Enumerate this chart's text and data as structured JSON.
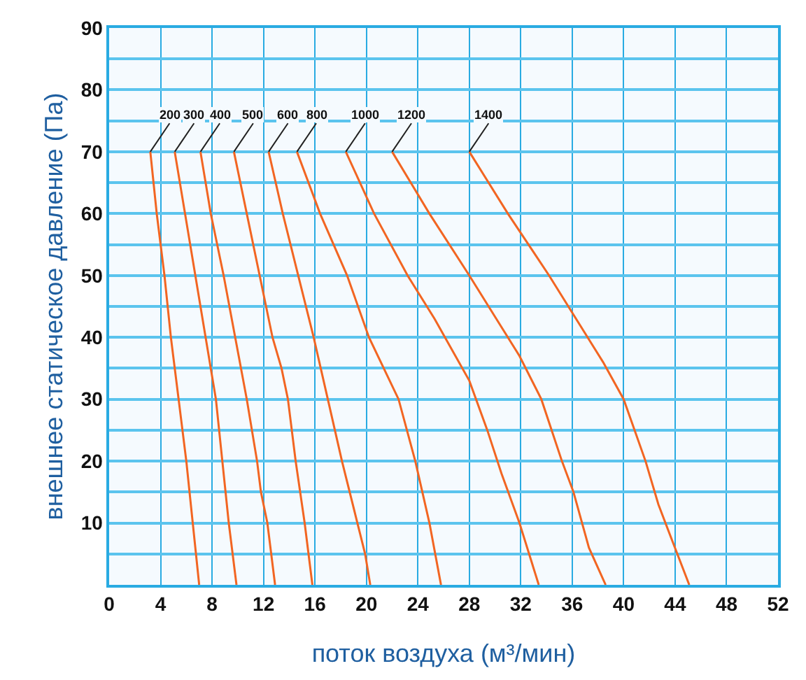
{
  "chart_data": {
    "type": "line",
    "xlabel": "поток воздуха (м³/мин)",
    "ylabel": "внешнее статическое давление (Па)",
    "xlim": [
      0,
      52
    ],
    "xticks": [
      0,
      4,
      8,
      12,
      16,
      20,
      24,
      28,
      32,
      36,
      40,
      44,
      48,
      52
    ],
    "ylim": [
      0,
      90
    ],
    "yticks": [
      {
        "value": 5,
        "label": null
      },
      10,
      {
        "value": 15,
        "label": null
      },
      20,
      {
        "value": 25,
        "label": null
      },
      30,
      {
        "value": 35,
        "label": null
      },
      40,
      {
        "value": 45,
        "label": null
      },
      50,
      {
        "value": 55,
        "label": null
      },
      60,
      {
        "value": 65,
        "label": null
      },
      70,
      {
        "value": 75,
        "label": null
      },
      80,
      {
        "value": 85,
        "label": null
      },
      90
    ],
    "grid": true,
    "legend": false,
    "marker": "none",
    "line_style": "solid",
    "series": [
      {
        "name": "200",
        "color": "#f26522",
        "x": [
          3.2,
          3.7,
          4.3,
          4.8,
          5.4,
          6.0,
          6.5,
          7.0
        ],
        "values": [
          70,
          60,
          50,
          40,
          30,
          20,
          10,
          0
        ]
      },
      {
        "name": "300",
        "color": "#f26522",
        "x": [
          5.1,
          5.9,
          6.7,
          7.5,
          7.9,
          8.3,
          8.8,
          9.3,
          9.9
        ],
        "values": [
          70,
          60,
          50,
          40,
          35,
          30,
          20,
          10,
          0
        ]
      },
      {
        "name": "400",
        "color": "#f26522",
        "x": [
          7.1,
          7.9,
          8.9,
          9.8,
          10.7,
          11.5,
          11.8,
          12.3,
          12.9
        ],
        "values": [
          70,
          60,
          50,
          40,
          30,
          20,
          15,
          10,
          0
        ]
      },
      {
        "name": "500",
        "color": "#f26522",
        "x": [
          9.7,
          10.7,
          11.7,
          12.7,
          13.4,
          13.9,
          14.5,
          15.2,
          15.8
        ],
        "values": [
          70,
          60,
          50,
          40,
          35,
          30,
          20,
          10,
          0
        ]
      },
      {
        "name": "600",
        "color": "#f26522",
        "x": [
          12.4,
          13.5,
          14.7,
          15.9,
          17.0,
          18.1,
          19.3,
          19.9,
          20.3
        ],
        "values": [
          70,
          60,
          50,
          40,
          30,
          20,
          10,
          5,
          0
        ]
      },
      {
        "name": "800",
        "color": "#f26522",
        "x": [
          14.6,
          16.4,
          18.5,
          20.2,
          22.5,
          23.8,
          24.9,
          25.8
        ],
        "values": [
          70,
          60,
          50,
          40,
          30,
          20,
          10,
          0
        ]
      },
      {
        "name": "1000",
        "color": "#f26522",
        "x": [
          18.4,
          20.6,
          23.2,
          25.3,
          28.0,
          29.4,
          30.5,
          31.9,
          33.4
        ],
        "values": [
          70,
          60,
          50,
          43,
          33,
          25,
          18,
          10,
          0
        ]
      },
      {
        "name": "1200",
        "color": "#f26522",
        "x": [
          22.0,
          24.9,
          28.0,
          30.1,
          31.9,
          33.6,
          35.2,
          36.1,
          37.3,
          38.6
        ],
        "values": [
          70,
          60,
          50,
          43,
          37,
          30,
          20,
          15,
          6,
          0
        ]
      },
      {
        "name": "1400",
        "color": "#f26522",
        "x": [
          28.0,
          31.0,
          34.2,
          36.3,
          38.4,
          40.0,
          41.7,
          42.7,
          43.8,
          45.1
        ],
        "values": [
          70,
          60,
          50,
          43,
          36,
          30,
          20,
          13,
          7,
          0
        ]
      }
    ]
  }
}
